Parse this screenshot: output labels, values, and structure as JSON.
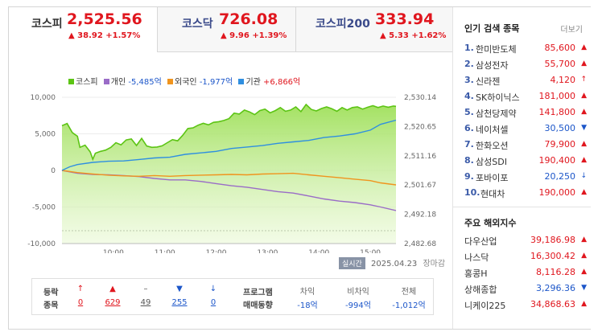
{
  "tabs": [
    {
      "name": "코스피",
      "value": "2,525.56",
      "change": "▲ 38.92 +1.57%"
    },
    {
      "name": "코스닥",
      "value": "726.08",
      "change": "▲ 9.96 +1.39%"
    },
    {
      "name": "코스피200",
      "value": "333.94",
      "change": "▲ 5.33 +1.62%"
    }
  ],
  "legend": {
    "kospi": "코스피",
    "individual_label": "개인",
    "individual_value": "-5,485억",
    "foreign_label": "외국인",
    "foreign_value": "-1,977억",
    "inst_label": "기관",
    "inst_value": "+6,866억"
  },
  "colors": {
    "kospi": "#5cc414",
    "individual": "#9a6cc7",
    "foreign": "#f0941e",
    "institution": "#2f8fe0",
    "up": "#e0161e",
    "down": "#1c56c9"
  },
  "chart_data": {
    "type": "line",
    "x_ticks": [
      "10:00",
      "11:00",
      "12:00",
      "13:00",
      "14:00",
      "15:00"
    ],
    "y_left_ticks": [
      "10,000",
      "5,000",
      "0",
      "-5,000",
      "-10,000"
    ],
    "y_left_range": [
      -10000,
      10000
    ],
    "y_right_ticks": [
      "2,530.14",
      "2,520.65",
      "2,511.16",
      "2,501.67",
      "2,492.18",
      "2,482.68"
    ],
    "y_right_range": [
      2482.68,
      2530.14
    ],
    "t_range": [
      9.0,
      15.5
    ],
    "series": [
      {
        "name": "코스피",
        "axis": "right",
        "points": [
          [
            9.0,
            2520.9
          ],
          [
            9.1,
            2521.6
          ],
          [
            9.2,
            2518.7
          ],
          [
            9.3,
            2517.5
          ],
          [
            9.35,
            2513.9
          ],
          [
            9.45,
            2514.6
          ],
          [
            9.55,
            2512.4
          ],
          [
            9.6,
            2510.0
          ],
          [
            9.65,
            2512.0
          ],
          [
            9.75,
            2512.6
          ],
          [
            9.85,
            2513.0
          ],
          [
            9.95,
            2513.9
          ],
          [
            10.05,
            2515.4
          ],
          [
            10.15,
            2514.7
          ],
          [
            10.25,
            2516.3
          ],
          [
            10.35,
            2516.6
          ],
          [
            10.45,
            2514.5
          ],
          [
            10.55,
            2516.8
          ],
          [
            10.65,
            2514.3
          ],
          [
            10.75,
            2513.9
          ],
          [
            10.85,
            2514.0
          ],
          [
            10.95,
            2514.4
          ],
          [
            11.05,
            2515.4
          ],
          [
            11.15,
            2516.4
          ],
          [
            11.25,
            2516.0
          ],
          [
            11.35,
            2517.8
          ],
          [
            11.45,
            2520.0
          ],
          [
            11.55,
            2520.2
          ],
          [
            11.65,
            2521.1
          ],
          [
            11.75,
            2521.7
          ],
          [
            11.85,
            2521.2
          ],
          [
            11.95,
            2522.0
          ],
          [
            12.05,
            2522.2
          ],
          [
            12.15,
            2522.6
          ],
          [
            12.25,
            2523.2
          ],
          [
            12.35,
            2525.0
          ],
          [
            12.45,
            2524.7
          ],
          [
            12.55,
            2526.0
          ],
          [
            12.65,
            2525.4
          ],
          [
            12.75,
            2524.5
          ],
          [
            12.85,
            2525.8
          ],
          [
            12.95,
            2526.3
          ],
          [
            13.05,
            2525.1
          ],
          [
            13.15,
            2525.8
          ],
          [
            13.25,
            2526.8
          ],
          [
            13.35,
            2525.6
          ],
          [
            13.45,
            2526.0
          ],
          [
            13.55,
            2527.0
          ],
          [
            13.65,
            2525.5
          ],
          [
            13.75,
            2527.8
          ],
          [
            13.85,
            2526.2
          ],
          [
            13.95,
            2525.7
          ],
          [
            14.05,
            2526.5
          ],
          [
            14.15,
            2527.0
          ],
          [
            14.25,
            2526.4
          ],
          [
            14.35,
            2525.6
          ],
          [
            14.45,
            2526.8
          ],
          [
            14.55,
            2526.0
          ],
          [
            14.65,
            2526.8
          ],
          [
            14.75,
            2527.0
          ],
          [
            14.85,
            2526.3
          ],
          [
            14.95,
            2526.9
          ],
          [
            15.05,
            2527.4
          ],
          [
            15.15,
            2526.8
          ],
          [
            15.25,
            2527.3
          ],
          [
            15.35,
            2526.9
          ],
          [
            15.45,
            2527.3
          ],
          [
            15.5,
            2527.2
          ]
        ]
      },
      {
        "name": "개인",
        "axis": "left",
        "points": [
          [
            9.0,
            0
          ],
          [
            9.3,
            -400
          ],
          [
            9.6,
            -550
          ],
          [
            9.9,
            -600
          ],
          [
            10.2,
            -700
          ],
          [
            10.5,
            -850
          ],
          [
            10.8,
            -1100
          ],
          [
            11.1,
            -1300
          ],
          [
            11.4,
            -1300
          ],
          [
            11.7,
            -1500
          ],
          [
            12.0,
            -1800
          ],
          [
            12.3,
            -2100
          ],
          [
            12.6,
            -2300
          ],
          [
            12.9,
            -2600
          ],
          [
            13.2,
            -2900
          ],
          [
            13.5,
            -3100
          ],
          [
            13.8,
            -3500
          ],
          [
            14.1,
            -3900
          ],
          [
            14.4,
            -4200
          ],
          [
            14.7,
            -4400
          ],
          [
            15.0,
            -4700
          ],
          [
            15.2,
            -5000
          ],
          [
            15.5,
            -5485
          ]
        ]
      },
      {
        "name": "외국인",
        "axis": "left",
        "points": [
          [
            9.0,
            0
          ],
          [
            9.3,
            -300
          ],
          [
            9.6,
            -500
          ],
          [
            9.9,
            -650
          ],
          [
            10.2,
            -750
          ],
          [
            10.5,
            -800
          ],
          [
            10.8,
            -700
          ],
          [
            11.1,
            -800
          ],
          [
            11.4,
            -700
          ],
          [
            11.7,
            -650
          ],
          [
            12.0,
            -600
          ],
          [
            12.3,
            -550
          ],
          [
            12.6,
            -600
          ],
          [
            12.9,
            -500
          ],
          [
            13.2,
            -450
          ],
          [
            13.5,
            -400
          ],
          [
            13.8,
            -600
          ],
          [
            14.1,
            -800
          ],
          [
            14.4,
            -1000
          ],
          [
            14.7,
            -1200
          ],
          [
            15.0,
            -1400
          ],
          [
            15.2,
            -1700
          ],
          [
            15.5,
            -1977
          ]
        ]
      },
      {
        "name": "기관",
        "axis": "left",
        "points": [
          [
            9.0,
            0
          ],
          [
            9.15,
            500
          ],
          [
            9.3,
            800
          ],
          [
            9.6,
            1100
          ],
          [
            9.9,
            1250
          ],
          [
            10.2,
            1300
          ],
          [
            10.5,
            1500
          ],
          [
            10.8,
            1700
          ],
          [
            11.1,
            1800
          ],
          [
            11.4,
            2200
          ],
          [
            11.7,
            2400
          ],
          [
            12.0,
            2600
          ],
          [
            12.3,
            3000
          ],
          [
            12.6,
            3200
          ],
          [
            12.9,
            3400
          ],
          [
            13.2,
            3700
          ],
          [
            13.5,
            3900
          ],
          [
            13.8,
            4100
          ],
          [
            14.1,
            4500
          ],
          [
            14.4,
            4700
          ],
          [
            14.7,
            5000
          ],
          [
            15.0,
            5500
          ],
          [
            15.2,
            6300
          ],
          [
            15.5,
            6866
          ]
        ]
      }
    ]
  },
  "status": {
    "badge": "실시간",
    "date": "2025.04.23",
    "close": "장마감"
  },
  "stats": {
    "label1": "등락",
    "label2": "종목",
    "counts": [
      {
        "arrow": "↑",
        "count": "0",
        "cls": "up"
      },
      {
        "arrow": "▲",
        "count": "629",
        "cls": "up"
      },
      {
        "arrow": "–",
        "count": "49",
        "cls": "flat"
      },
      {
        "arrow": "▼",
        "count": "255",
        "cls": "dn"
      },
      {
        "arrow": "↓",
        "count": "0",
        "cls": "dn"
      }
    ],
    "program_label1": "프로그램",
    "program_label2": "매매동향",
    "program": [
      {
        "label": "차익",
        "value": "-18억"
      },
      {
        "label": "비차익",
        "value": "-994억"
      },
      {
        "label": "전체",
        "value": "-1,012억"
      }
    ]
  },
  "popular": {
    "title": "인기 검색 종목",
    "more": "더보기",
    "items": [
      {
        "rank": "1.",
        "name": "한미반도체",
        "price": "85,600",
        "dir": "up",
        "arrow": "▲"
      },
      {
        "rank": "2.",
        "name": "삼성전자",
        "price": "55,700",
        "dir": "up",
        "arrow": "▲"
      },
      {
        "rank": "3.",
        "name": "신라젠",
        "price": "4,120",
        "dir": "up",
        "arrow": "↑"
      },
      {
        "rank": "4.",
        "name": "SK하이닉스",
        "price": "181,000",
        "dir": "up",
        "arrow": "▲"
      },
      {
        "rank": "5.",
        "name": "삼천당제약",
        "price": "141,800",
        "dir": "up",
        "arrow": "▲"
      },
      {
        "rank": "6.",
        "name": "네이처셀",
        "price": "30,500",
        "dir": "dn",
        "arrow": "▼"
      },
      {
        "rank": "7.",
        "name": "한화오션",
        "price": "79,900",
        "dir": "up",
        "arrow": "▲"
      },
      {
        "rank": "8.",
        "name": "삼성SDI",
        "price": "190,400",
        "dir": "up",
        "arrow": "▲"
      },
      {
        "rank": "9.",
        "name": "포바이포",
        "price": "20,250",
        "dir": "dn",
        "arrow": "↓"
      },
      {
        "rank": "10.",
        "name": "현대차",
        "price": "190,000",
        "dir": "up",
        "arrow": "▲"
      }
    ]
  },
  "overseas": {
    "title": "주요 해외지수",
    "items": [
      {
        "name": "다우산업",
        "price": "39,186.98",
        "dir": "up",
        "arrow": "▲"
      },
      {
        "name": "나스닥",
        "price": "16,300.42",
        "dir": "up",
        "arrow": "▲"
      },
      {
        "name": "홍콩H",
        "price": "8,116.28",
        "dir": "up",
        "arrow": "▲"
      },
      {
        "name": "상해종합",
        "price": "3,296.36",
        "dir": "dn",
        "arrow": "▼"
      },
      {
        "name": "니케이225",
        "price": "34,868.63",
        "dir": "up",
        "arrow": "▲"
      }
    ]
  }
}
